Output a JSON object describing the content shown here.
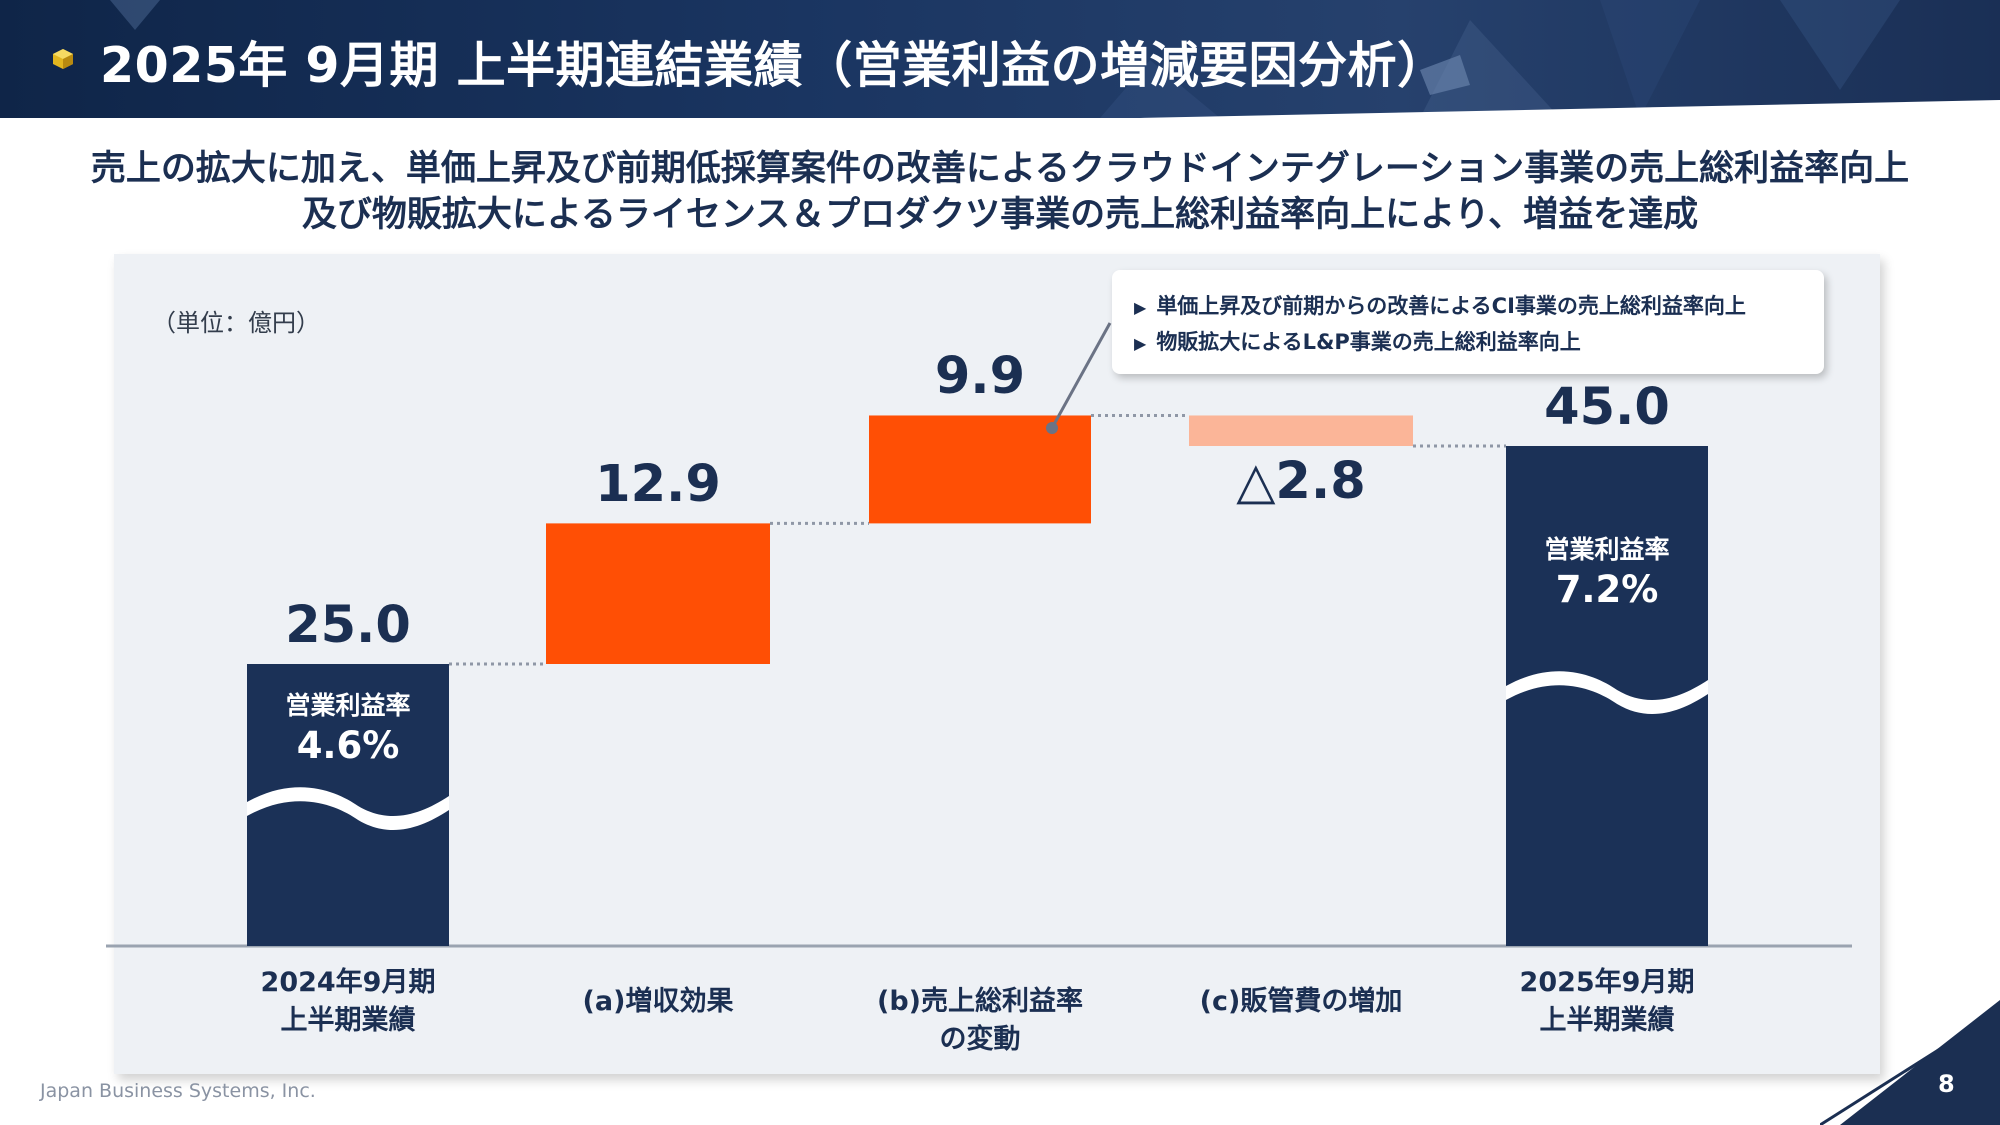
{
  "header": {
    "title": "2025年 9月期 上半期連結業績（営業利益の増減要因分析）"
  },
  "headline": {
    "line1": "売上の拡大に加え、単価上昇及び前期低採算案件の改善によるクラウドインテグレーション事業の売上総利益率向上",
    "line2": "及び物販拡大によるライセンス＆プロダクツ事業の売上総利益率向上により、増益を達成"
  },
  "unit_label": "（単位：億円）",
  "callout": {
    "items": [
      "単価上昇及び前期からの改善によるCI事業の売上総利益率向上",
      "物販拡大によるL&P事業の売上総利益率向上"
    ],
    "bullet": "▶"
  },
  "bar_inner": {
    "start": {
      "caption": "営業利益率",
      "value": "4.6%"
    },
    "end": {
      "caption": "営業利益率",
      "value": "7.2%"
    }
  },
  "colors": {
    "navy": "#1b3157",
    "orange": "#ff4f05",
    "light_orange": "#fbb598",
    "panel": "#eef1f5"
  },
  "chart_data": {
    "type": "waterfall",
    "unit": "億円",
    "categories": [
      "2024年9月期 上半期業績",
      "(a)増収効果",
      "(b)売上総利益率の変動",
      "(c)販管費の増加",
      "2025年9月期 上半期業績"
    ],
    "values": [
      25.0,
      12.9,
      9.9,
      -2.8,
      45.0
    ],
    "kinds": [
      "total",
      "increase",
      "increase",
      "decrease",
      "total"
    ],
    "value_labels": [
      "25.0",
      "12.9",
      "9.9",
      "△2.8",
      "45.0"
    ],
    "axis_broken": true,
    "x_labels": [
      [
        "2024年9月期",
        "上半期業績"
      ],
      [
        "(a)増収効果"
      ],
      [
        "(b)売上総利益率",
        "の変動"
      ],
      [
        "(c)販管費の増加"
      ],
      [
        "2025年9月期",
        "上半期業績"
      ]
    ]
  },
  "footer": {
    "company": "Japan Business Systems, Inc.",
    "page": "8"
  }
}
